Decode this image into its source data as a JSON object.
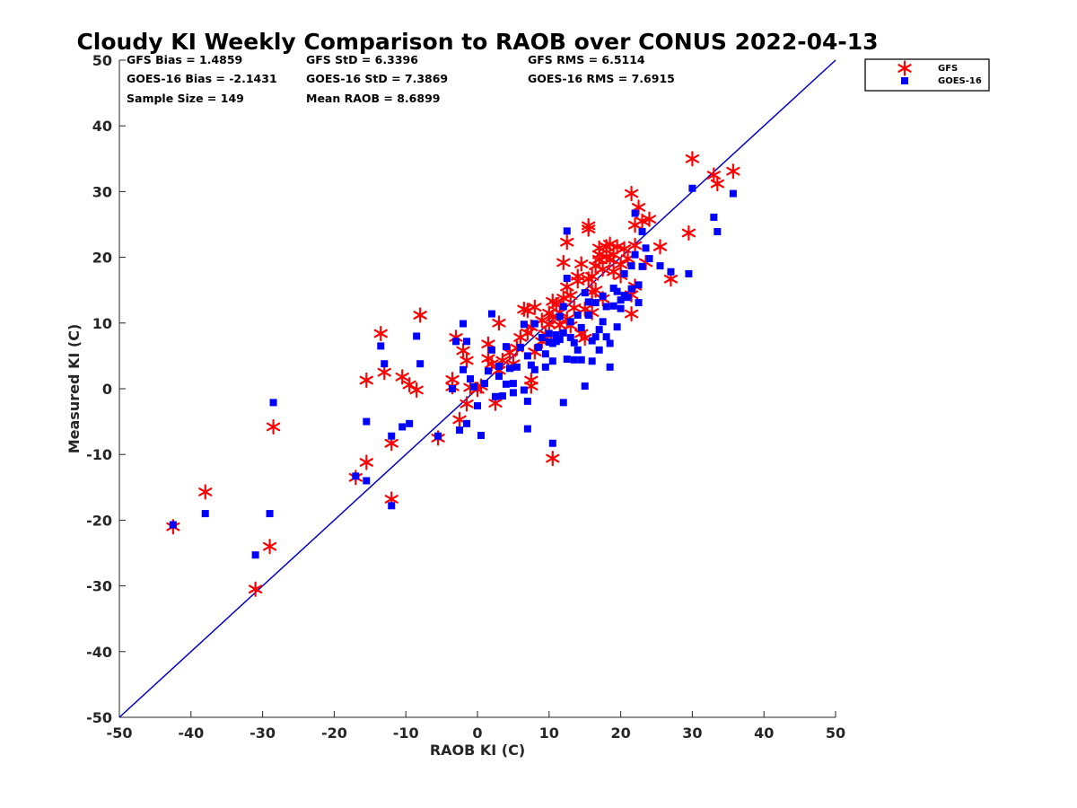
{
  "chart_data": {
    "type": "scatter",
    "title": "Cloudy KI Weekly Comparison to RAOB over CONUS 2022-04-13",
    "xlabel": "RAOB KI (C)",
    "ylabel": "Measured KI (C)",
    "xlim": [
      -50,
      50
    ],
    "ylim": [
      -50,
      50
    ],
    "xticks": [
      "-50",
      "-40",
      "-30",
      "-20",
      "-10",
      "0",
      "10",
      "20",
      "30",
      "40",
      "50"
    ],
    "yticks": [
      "-50",
      "-40",
      "-30",
      "-20",
      "-10",
      "0",
      "10",
      "20",
      "30",
      "40",
      "50"
    ],
    "grid": false,
    "legend_position": "outside-top-right",
    "reference_line": {
      "type": "y=x",
      "color": "#0000cc"
    },
    "stats": [
      [
        "GFS Bias = 1.4859",
        "GFS StD = 6.3396",
        "GFS RMS = 6.5114"
      ],
      [
        "GOES-16 Bias = -2.1431",
        "GOES-16 StD = 7.3869",
        "GOES-16 RMS = 7.6915"
      ],
      [
        "Sample Size = 149",
        "Mean RAOB = 8.6899",
        ""
      ]
    ],
    "series": [
      {
        "name": "GFS",
        "marker": "asterisk",
        "color": "#ff0000",
        "points": [
          [
            -42.5,
            -21
          ],
          [
            -38,
            -15.7
          ],
          [
            -29,
            -24
          ],
          [
            -28.5,
            -5.8
          ],
          [
            -31,
            -30.5
          ],
          [
            -17,
            -13.5
          ],
          [
            -15.5,
            -11.2
          ],
          [
            -15.5,
            1.3
          ],
          [
            -13.5,
            8.4
          ],
          [
            -13,
            2.5
          ],
          [
            -12,
            -8.3
          ],
          [
            -12,
            -16.8
          ],
          [
            -10.5,
            1.8
          ],
          [
            -9.5,
            0.6
          ],
          [
            -8.5,
            -0.2
          ],
          [
            -8,
            11.2
          ],
          [
            -5.5,
            -7.5
          ],
          [
            -3.5,
            1.4
          ],
          [
            -3.5,
            0.3
          ],
          [
            -3,
            7.8
          ],
          [
            -2.5,
            -4.7
          ],
          [
            -2,
            5.8
          ],
          [
            -1.5,
            -2.3
          ],
          [
            -1.5,
            4.3
          ],
          [
            -1,
            0.2
          ],
          [
            0,
            -0.1
          ],
          [
            0.5,
            0.4
          ],
          [
            1.5,
            6.8
          ],
          [
            1.5,
            4.6
          ],
          [
            2,
            3.8
          ],
          [
            2.5,
            -2.2
          ],
          [
            3,
            10
          ],
          [
            3,
            2.8
          ],
          [
            3.5,
            4.3
          ],
          [
            4.5,
            5.5
          ],
          [
            5,
            3.8
          ],
          [
            5.5,
            6.2
          ],
          [
            6,
            7.8
          ],
          [
            6.5,
            12.1
          ],
          [
            7,
            11.9
          ],
          [
            7,
            8.5
          ],
          [
            7.5,
            9.4
          ],
          [
            7.5,
            0.4
          ],
          [
            7.5,
            1.3
          ],
          [
            8,
            5.6
          ],
          [
            8,
            12.4
          ],
          [
            9,
            10.4
          ],
          [
            9,
            7.2
          ],
          [
            9.5,
            8.3
          ],
          [
            10,
            9.8
          ],
          [
            10,
            11.5
          ],
          [
            10.5,
            10.9
          ],
          [
            10.5,
            13.3
          ],
          [
            10.5,
            -10.6
          ],
          [
            11,
            12.8
          ],
          [
            11.5,
            11.6
          ],
          [
            11.5,
            9.7
          ],
          [
            12,
            19.2
          ],
          [
            12,
            13.8
          ],
          [
            12.5,
            22.3
          ],
          [
            12.5,
            15.5
          ],
          [
            12.5,
            10.6
          ],
          [
            13,
            14.2
          ],
          [
            13,
            9.6
          ],
          [
            13.5,
            12.3
          ],
          [
            14,
            17.1
          ],
          [
            14,
            16.4
          ],
          [
            14.5,
            19
          ],
          [
            14.5,
            8.4
          ],
          [
            15,
            12.1
          ],
          [
            15,
            7.7
          ],
          [
            15.5,
            24.3
          ],
          [
            15.5,
            24.8
          ],
          [
            15.5,
            16.7
          ],
          [
            16,
            14.7
          ],
          [
            16,
            11.6
          ],
          [
            16,
            17.1
          ],
          [
            16.5,
            18.7
          ],
          [
            16.5,
            15
          ],
          [
            17,
            20.4
          ],
          [
            17,
            21.4
          ],
          [
            17,
            19.7
          ],
          [
            17.5,
            13.7
          ],
          [
            17.5,
            18.2
          ],
          [
            18,
            20.1
          ],
          [
            18,
            21.6
          ],
          [
            18.5,
            22
          ],
          [
            18.5,
            19.6
          ],
          [
            19,
            17.8
          ],
          [
            19,
            20.4
          ],
          [
            19.5,
            21.6
          ],
          [
            20,
            18.9
          ],
          [
            20,
            17.2
          ],
          [
            20.5,
            21.3
          ],
          [
            21,
            19.8
          ],
          [
            21.5,
            11.4
          ],
          [
            21.5,
            14.3
          ],
          [
            21.5,
            29.7
          ],
          [
            22,
            21.8
          ],
          [
            22,
            24.9
          ],
          [
            22,
            15.6
          ],
          [
            22.5,
            27.6
          ],
          [
            23,
            25.5
          ],
          [
            23.5,
            19.2
          ],
          [
            24,
            25.8
          ],
          [
            25.5,
            21.6
          ],
          [
            27,
            16.7
          ],
          [
            29.5,
            23.7
          ],
          [
            30,
            35
          ],
          [
            33,
            32.5
          ],
          [
            33.5,
            31.2
          ],
          [
            35.7,
            33.1
          ]
        ]
      },
      {
        "name": "GOES-16",
        "marker": "square",
        "color": "#0000ff",
        "points": [
          [
            -42.5,
            -20.7
          ],
          [
            -38,
            -19
          ],
          [
            -31,
            -25.3
          ],
          [
            -29,
            -19
          ],
          [
            -28.5,
            -2.1
          ],
          [
            -17,
            -13.3
          ],
          [
            -15.5,
            -14
          ],
          [
            -15.5,
            -5
          ],
          [
            -13.5,
            6.5
          ],
          [
            -13,
            3.8
          ],
          [
            -12,
            -7.2
          ],
          [
            -12,
            -17.8
          ],
          [
            -10.5,
            -5.8
          ],
          [
            -9.5,
            -5.3
          ],
          [
            -8.5,
            8
          ],
          [
            -8,
            3.8
          ],
          [
            -5.5,
            -7.2
          ],
          [
            -3.5,
            0
          ],
          [
            -3,
            7.2
          ],
          [
            -2.5,
            -6.3
          ],
          [
            -2,
            9.9
          ],
          [
            -2,
            2.9
          ],
          [
            -1.5,
            -5.3
          ],
          [
            -1.5,
            7.2
          ],
          [
            -1,
            1.5
          ],
          [
            -0.5,
            0.3
          ],
          [
            0,
            -2.6
          ],
          [
            0.5,
            -7.1
          ],
          [
            1,
            0.8
          ],
          [
            1.5,
            2.7
          ],
          [
            2,
            11.4
          ],
          [
            2,
            5.9
          ],
          [
            2.5,
            -1.2
          ],
          [
            3,
            1.9
          ],
          [
            3,
            3.4
          ],
          [
            3.5,
            -1.1
          ],
          [
            4,
            6.4
          ],
          [
            4,
            0.7
          ],
          [
            4.5,
            3.1
          ],
          [
            5,
            -0.6
          ],
          [
            5,
            0.8
          ],
          [
            5.5,
            3.3
          ],
          [
            6,
            6.3
          ],
          [
            6.5,
            9.8
          ],
          [
            6.5,
            -0.2
          ],
          [
            7,
            5
          ],
          [
            7,
            -1.9
          ],
          [
            7,
            -6.1
          ],
          [
            7.5,
            3.6
          ],
          [
            8,
            2.9
          ],
          [
            8,
            9.9
          ],
          [
            8.5,
            6.3
          ],
          [
            9,
            7.8
          ],
          [
            9.5,
            3.3
          ],
          [
            9.5,
            5.3
          ],
          [
            10,
            8.4
          ],
          [
            10,
            7.1
          ],
          [
            10.5,
            6.9
          ],
          [
            10.5,
            4.2
          ],
          [
            10.5,
            -8.3
          ],
          [
            11,
            8.2
          ],
          [
            11,
            7.2
          ],
          [
            11.5,
            11
          ],
          [
            11.5,
            7.5
          ],
          [
            12,
            12.5
          ],
          [
            12,
            8.5
          ],
          [
            12,
            -2.1
          ],
          [
            12.5,
            24
          ],
          [
            12.5,
            16.8
          ],
          [
            12.5,
            4.5
          ],
          [
            13,
            10.2
          ],
          [
            13,
            7.8
          ],
          [
            13.5,
            7
          ],
          [
            13.5,
            4.4
          ],
          [
            14,
            11.2
          ],
          [
            14,
            5.9
          ],
          [
            14.5,
            4.4
          ],
          [
            14.5,
            9.3
          ],
          [
            15,
            14.6
          ],
          [
            15,
            0.4
          ],
          [
            15.5,
            13.2
          ],
          [
            15.5,
            11.2
          ],
          [
            16,
            7.3
          ],
          [
            16,
            4.2
          ],
          [
            16.5,
            7.9
          ],
          [
            16.5,
            13.1
          ],
          [
            17,
            9
          ],
          [
            17,
            5.9
          ],
          [
            17.5,
            14.1
          ],
          [
            17.5,
            10.2
          ],
          [
            18,
            12.5
          ],
          [
            18,
            7.9
          ],
          [
            18.5,
            6.9
          ],
          [
            18.5,
            3.3
          ],
          [
            19,
            15.3
          ],
          [
            19,
            12.6
          ],
          [
            19.5,
            14.8
          ],
          [
            19.5,
            9.4
          ],
          [
            20,
            13.5
          ],
          [
            20,
            12.2
          ],
          [
            20.5,
            14.2
          ],
          [
            20.5,
            17.5
          ],
          [
            21,
            13.9
          ],
          [
            21.5,
            15.2
          ],
          [
            21.5,
            18.7
          ],
          [
            22,
            20.4
          ],
          [
            22,
            26.7
          ],
          [
            22.5,
            15.8
          ],
          [
            22.5,
            13.1
          ],
          [
            23,
            23.9
          ],
          [
            23,
            18.6
          ],
          [
            23.5,
            21.4
          ],
          [
            24,
            19.8
          ],
          [
            25.5,
            18.7
          ],
          [
            27,
            17.8
          ],
          [
            29.5,
            17.5
          ],
          [
            30,
            30.5
          ],
          [
            33,
            26.1
          ],
          [
            33.5,
            23.9
          ],
          [
            35.7,
            29.7
          ]
        ]
      }
    ]
  }
}
